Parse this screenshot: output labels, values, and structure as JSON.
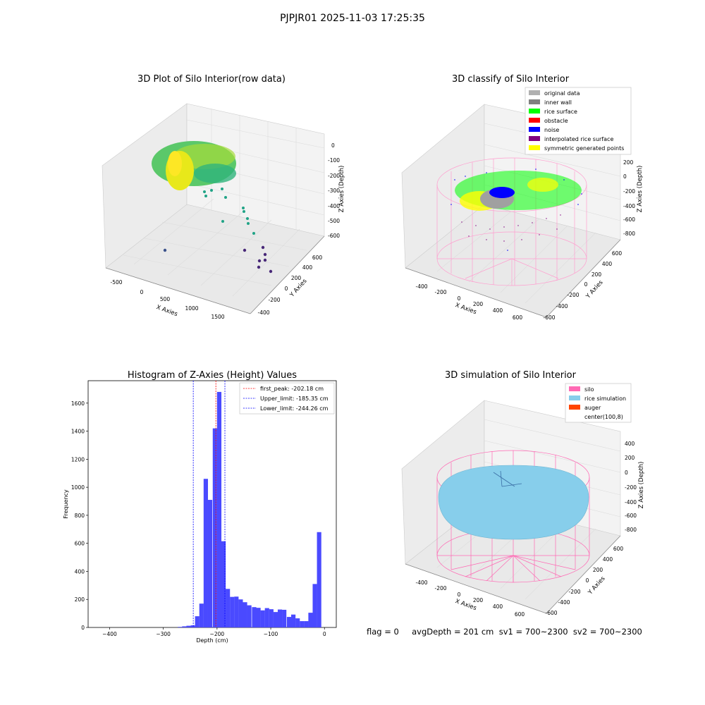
{
  "suptitle": "PJPJR01 2025-11-03 17:25:35",
  "footer": "flag = 0     avgDepth = 201 cm  sv1 = 700~2300  sv2 = 700~2300",
  "colors": {
    "hist_bar": "#4a4aff",
    "first_peak": "#ff0000",
    "limits": "#0000ff",
    "silo": "#ff69b4",
    "rice_simulation": "#87ceeb",
    "auger": "#ff4500"
  },
  "panel_raw": {
    "title": "3D Plot of Silo Interior(row data)",
    "xlabel": "X Axies",
    "ylabel": "Y Axies",
    "zlabel": "Z Axies (Depth)",
    "xticks": [
      "-500",
      "0",
      "500",
      "1000",
      "1500"
    ],
    "yticks": [
      "600",
      "400",
      "200",
      "0",
      "-200",
      "-400"
    ],
    "zticks": [
      "0",
      "-100",
      "-200",
      "-300",
      "-400",
      "-500",
      "-600"
    ]
  },
  "panel_classify": {
    "title": "3D classify of Silo Interior",
    "xlabel": "X Axies",
    "ylabel": "Y Axies",
    "zlabel": "Z Axies (Depth)",
    "xticks": [
      "-400",
      "-200",
      "0",
      "200",
      "400",
      "600"
    ],
    "yticks": [
      "600",
      "400",
      "200",
      "0",
      "-200",
      "-400",
      "-600"
    ],
    "zticks": [
      "200",
      "0",
      "-200",
      "-400",
      "-600",
      "-800"
    ],
    "legend": [
      {
        "label": "original data",
        "color": "#b0b0b0"
      },
      {
        "label": "inner wall",
        "color": "#808080"
      },
      {
        "label": "rice surface",
        "color": "#00ff00"
      },
      {
        "label": "obstacle",
        "color": "#ff0000"
      },
      {
        "label": "noise",
        "color": "#0000ff"
      },
      {
        "label": "interpolated rice surface",
        "color": "#800080"
      },
      {
        "label": "symmetric generated points",
        "color": "#ffff00"
      }
    ]
  },
  "panel_sim": {
    "title": "3D simulation of Silo Interior",
    "xlabel": "X Axies",
    "ylabel": "Y Axies",
    "zlabel": "Z Axies (Depth)",
    "xticks": [
      "-400",
      "-200",
      "0",
      "200",
      "400",
      "600"
    ],
    "yticks": [
      "600",
      "400",
      "200",
      "0",
      "-200",
      "-400",
      "-600"
    ],
    "zticks": [
      "400",
      "200",
      "0",
      "-200",
      "-400",
      "-600",
      "-800"
    ],
    "legend": [
      {
        "label": "silo",
        "color": "#ff69b4"
      },
      {
        "label": "rice simulation",
        "color": "#87ceeb"
      },
      {
        "label": "auger",
        "color": "#ff4500"
      },
      {
        "label": "center(100,8)",
        "color": ""
      }
    ]
  },
  "chart_data": [
    {
      "type": "histogram",
      "title": "Histogram of Z-Axies (Height) Values",
      "xlabel": "Depth (cm)",
      "ylabel": "Frequency",
      "xlim": [
        -440,
        22
      ],
      "ylim": [
        0,
        1760
      ],
      "xticks": [
        -400,
        -300,
        -200,
        -100,
        0
      ],
      "yticks": [
        0,
        200,
        400,
        600,
        800,
        1000,
        1200,
        1400,
        1600
      ],
      "bin_width": 8.1,
      "bins": [
        {
          "x0": -273,
          "count": 4
        },
        {
          "x0": -265,
          "count": 8
        },
        {
          "x0": -257,
          "count": 12
        },
        {
          "x0": -249,
          "count": 15
        },
        {
          "x0": -241,
          "count": 80
        },
        {
          "x0": -233,
          "count": 170
        },
        {
          "x0": -225,
          "count": 1060
        },
        {
          "x0": -217,
          "count": 910
        },
        {
          "x0": -208,
          "count": 1420
        },
        {
          "x0": -200,
          "count": 1680
        },
        {
          "x0": -192,
          "count": 615
        },
        {
          "x0": -184,
          "count": 275
        },
        {
          "x0": -176,
          "count": 218
        },
        {
          "x0": -168,
          "count": 220
        },
        {
          "x0": -160,
          "count": 200
        },
        {
          "x0": -152,
          "count": 180
        },
        {
          "x0": -144,
          "count": 158
        },
        {
          "x0": -135,
          "count": 145
        },
        {
          "x0": -127,
          "count": 140
        },
        {
          "x0": -119,
          "count": 122
        },
        {
          "x0": -111,
          "count": 138
        },
        {
          "x0": -103,
          "count": 130
        },
        {
          "x0": -95,
          "count": 110
        },
        {
          "x0": -87,
          "count": 128
        },
        {
          "x0": -79,
          "count": 126
        },
        {
          "x0": -70,
          "count": 75
        },
        {
          "x0": -62,
          "count": 92
        },
        {
          "x0": -54,
          "count": 65
        },
        {
          "x0": -46,
          "count": 45
        },
        {
          "x0": -38,
          "count": 45
        },
        {
          "x0": -30,
          "count": 105
        },
        {
          "x0": -22,
          "count": 310
        },
        {
          "x0": -14,
          "count": 680
        }
      ],
      "vlines": [
        {
          "label": "first_peak: -202.18 cm",
          "x": -202.18,
          "color": "#ff0000"
        },
        {
          "label": "Upper_limit: -185.35 cm",
          "x": -185.35,
          "color": "#0000ff"
        },
        {
          "label": "Lower_limit: -244.26 cm",
          "x": -244.26,
          "color": "#0000ff"
        }
      ]
    }
  ]
}
